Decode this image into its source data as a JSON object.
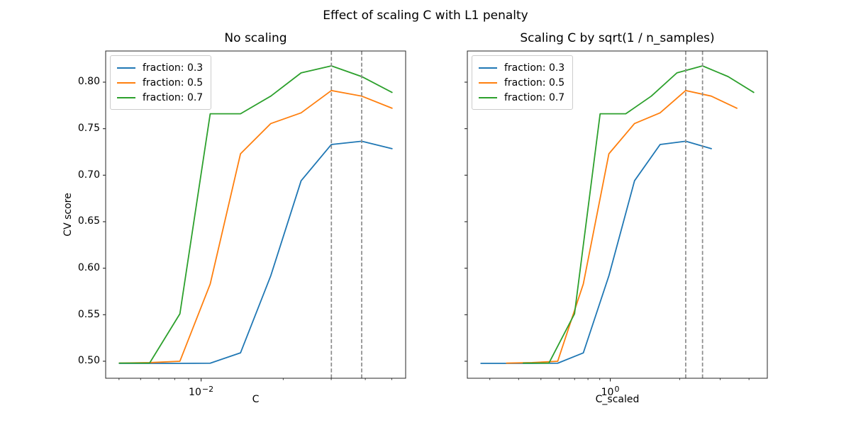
{
  "figure": {
    "suptitle": "Effect of scaling C with L1 penalty",
    "background": "#ffffff"
  },
  "style": {
    "spine_color": "#262626",
    "tick_color": "#262626",
    "vline_color": "#8c8c8c",
    "line_width": 1.8
  },
  "chart_data": [
    {
      "type": "line",
      "title": "No scaling",
      "xlabel": "C",
      "ylabel": "CV score",
      "xscale": "log",
      "xlim": [
        0.0044668,
        0.056234
      ],
      "ylim": [
        0.4817,
        0.8335
      ],
      "grid": false,
      "legend_position": "upper-left",
      "x_major_ticks": [
        {
          "value": 0.01,
          "base": "10",
          "exp": "−2"
        }
      ],
      "y_ticks": [
        0.5,
        0.55,
        0.6,
        0.65,
        0.7,
        0.75,
        0.8
      ],
      "y_tick_labels": [
        "0.50",
        "0.55",
        "0.60",
        "0.65",
        "0.70",
        "0.75",
        "0.80"
      ],
      "show_y_tick_labels": true,
      "vlines": [
        0.03004,
        0.0388
      ],
      "series": [
        {
          "name": "fraction: 0.3",
          "color": "#1f77b4",
          "x": [
            0.005012,
            0.006473,
            0.00836,
            0.010798,
            0.013945,
            0.018011,
            0.023263,
            0.030042,
            0.038802,
            0.050119
          ],
          "y": [
            0.4977,
            0.4977,
            0.4977,
            0.4979,
            0.509,
            0.592,
            0.694,
            0.733,
            0.7365,
            0.7285
          ]
        },
        {
          "name": "fraction: 0.5",
          "color": "#ff7f0e",
          "x": [
            0.005012,
            0.006473,
            0.00836,
            0.010798,
            0.013945,
            0.018011,
            0.023263,
            0.030042,
            0.038802,
            0.050119
          ],
          "y": [
            0.498,
            0.4985,
            0.5,
            0.583,
            0.723,
            0.7555,
            0.767,
            0.791,
            0.785,
            0.772
          ]
        },
        {
          "name": "fraction: 0.7",
          "color": "#2ca02c",
          "x": [
            0.005012,
            0.006473,
            0.00836,
            0.010798,
            0.013945,
            0.018011,
            0.023263,
            0.030042,
            0.038802,
            0.050119
          ],
          "y": [
            0.498,
            0.498,
            0.551,
            0.766,
            0.766,
            0.785,
            0.81,
            0.8175,
            0.806,
            0.789
          ]
        }
      ]
    },
    {
      "type": "line",
      "title": "Scaling C by sqrt(1 / n_samples)",
      "xlabel": "C_scaled",
      "ylabel": "",
      "xscale": "log",
      "xlim": [
        0.2396,
        4.804
      ],
      "ylim": [
        0.4817,
        0.8335
      ],
      "grid": false,
      "legend_position": "upper-left",
      "x_major_ticks": [
        {
          "value": 1.0,
          "base": "10",
          "exp": "0"
        }
      ],
      "y_ticks": [
        0.5,
        0.55,
        0.6,
        0.65,
        0.7,
        0.75,
        0.8
      ],
      "y_tick_labels": [],
      "show_y_tick_labels": false,
      "vlines": [
        2.125,
        2.514
      ],
      "series": [
        {
          "name": "fraction: 0.3",
          "color": "#1f77b4",
          "x": [
            0.2745,
            0.3545,
            0.4579,
            0.5914,
            0.7638,
            0.9865,
            1.2741,
            1.6455,
            2.1253,
            2.7451
          ],
          "y": [
            0.4977,
            0.4977,
            0.4977,
            0.4979,
            0.509,
            0.592,
            0.694,
            0.733,
            0.7365,
            0.7285
          ]
        },
        {
          "name": "fraction: 0.5",
          "color": "#ff7f0e",
          "x": [
            0.3544,
            0.4577,
            0.5912,
            0.7635,
            0.9861,
            1.2736,
            1.645,
            2.1243,
            2.7437,
            3.544
          ],
          "y": [
            0.498,
            0.4985,
            0.5,
            0.583,
            0.723,
            0.7555,
            0.767,
            0.791,
            0.785,
            0.772
          ]
        },
        {
          "name": "fraction: 0.7",
          "color": "#2ca02c",
          "x": [
            0.4193,
            0.5416,
            0.6994,
            0.9034,
            1.1668,
            1.5069,
            1.9463,
            2.5135,
            3.2464,
            4.1933
          ],
          "y": [
            0.498,
            0.498,
            0.551,
            0.766,
            0.766,
            0.785,
            0.81,
            0.8175,
            0.806,
            0.789
          ]
        }
      ]
    }
  ]
}
